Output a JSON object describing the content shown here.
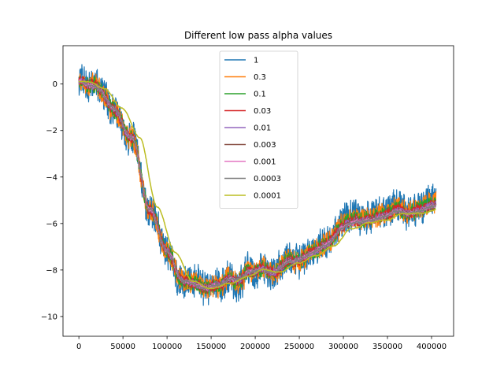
{
  "chart_data": {
    "type": "line",
    "title": "Different low pass alpha values",
    "xlabel": "",
    "ylabel": "",
    "xlim": [
      -18000,
      425000
    ],
    "ylim": [
      -10.85,
      1.65
    ],
    "x_ticks": [
      0,
      50000,
      100000,
      150000,
      200000,
      250000,
      300000,
      350000,
      400000
    ],
    "x_tick_labels": [
      "0",
      "50000",
      "100000",
      "150000",
      "200000",
      "250000",
      "300000",
      "350000",
      "400000"
    ],
    "y_ticks": [
      0,
      -2,
      -4,
      -6,
      -8,
      -10
    ],
    "y_tick_labels": [
      "0",
      "−2",
      "−4",
      "−6",
      "−8",
      "−10"
    ],
    "grid": false,
    "legend_position": "top-center",
    "x_end": 405000,
    "trend": {
      "x": [
        0,
        20000,
        40000,
        60000,
        80000,
        100000,
        120000,
        140000,
        160000,
        180000,
        200000,
        220000,
        240000,
        260000,
        280000,
        300000,
        320000,
        340000,
        360000,
        380000,
        405000
      ],
      "y": [
        0.1,
        -0.2,
        -1.0,
        -2.3,
        -5.3,
        -7.2,
        -8.5,
        -8.8,
        -8.6,
        -8.3,
        -8.0,
        -8.1,
        -7.7,
        -7.4,
        -7.0,
        -6.3,
        -6.0,
        -5.9,
        -5.6,
        -5.6,
        -5.4
      ]
    },
    "series": [
      {
        "name": "1",
        "color": "#1f77b4",
        "band": 0.75
      },
      {
        "name": "0.3",
        "color": "#ff7f0e",
        "band": 0.5
      },
      {
        "name": "0.1",
        "color": "#2ca02c",
        "band": 0.35
      },
      {
        "name": "0.03",
        "color": "#d62728",
        "band": 0.25
      },
      {
        "name": "0.01",
        "color": "#9467bd",
        "band": 0.17
      },
      {
        "name": "0.003",
        "color": "#8c564b",
        "band": 0.12
      },
      {
        "name": "0.001",
        "color": "#e377c2",
        "band": 0.08
      },
      {
        "name": "0.0003",
        "color": "#7f7f7f",
        "band": 0.05
      },
      {
        "name": "0.0001",
        "color": "#bcbd22",
        "band": 0.0
      }
    ]
  }
}
